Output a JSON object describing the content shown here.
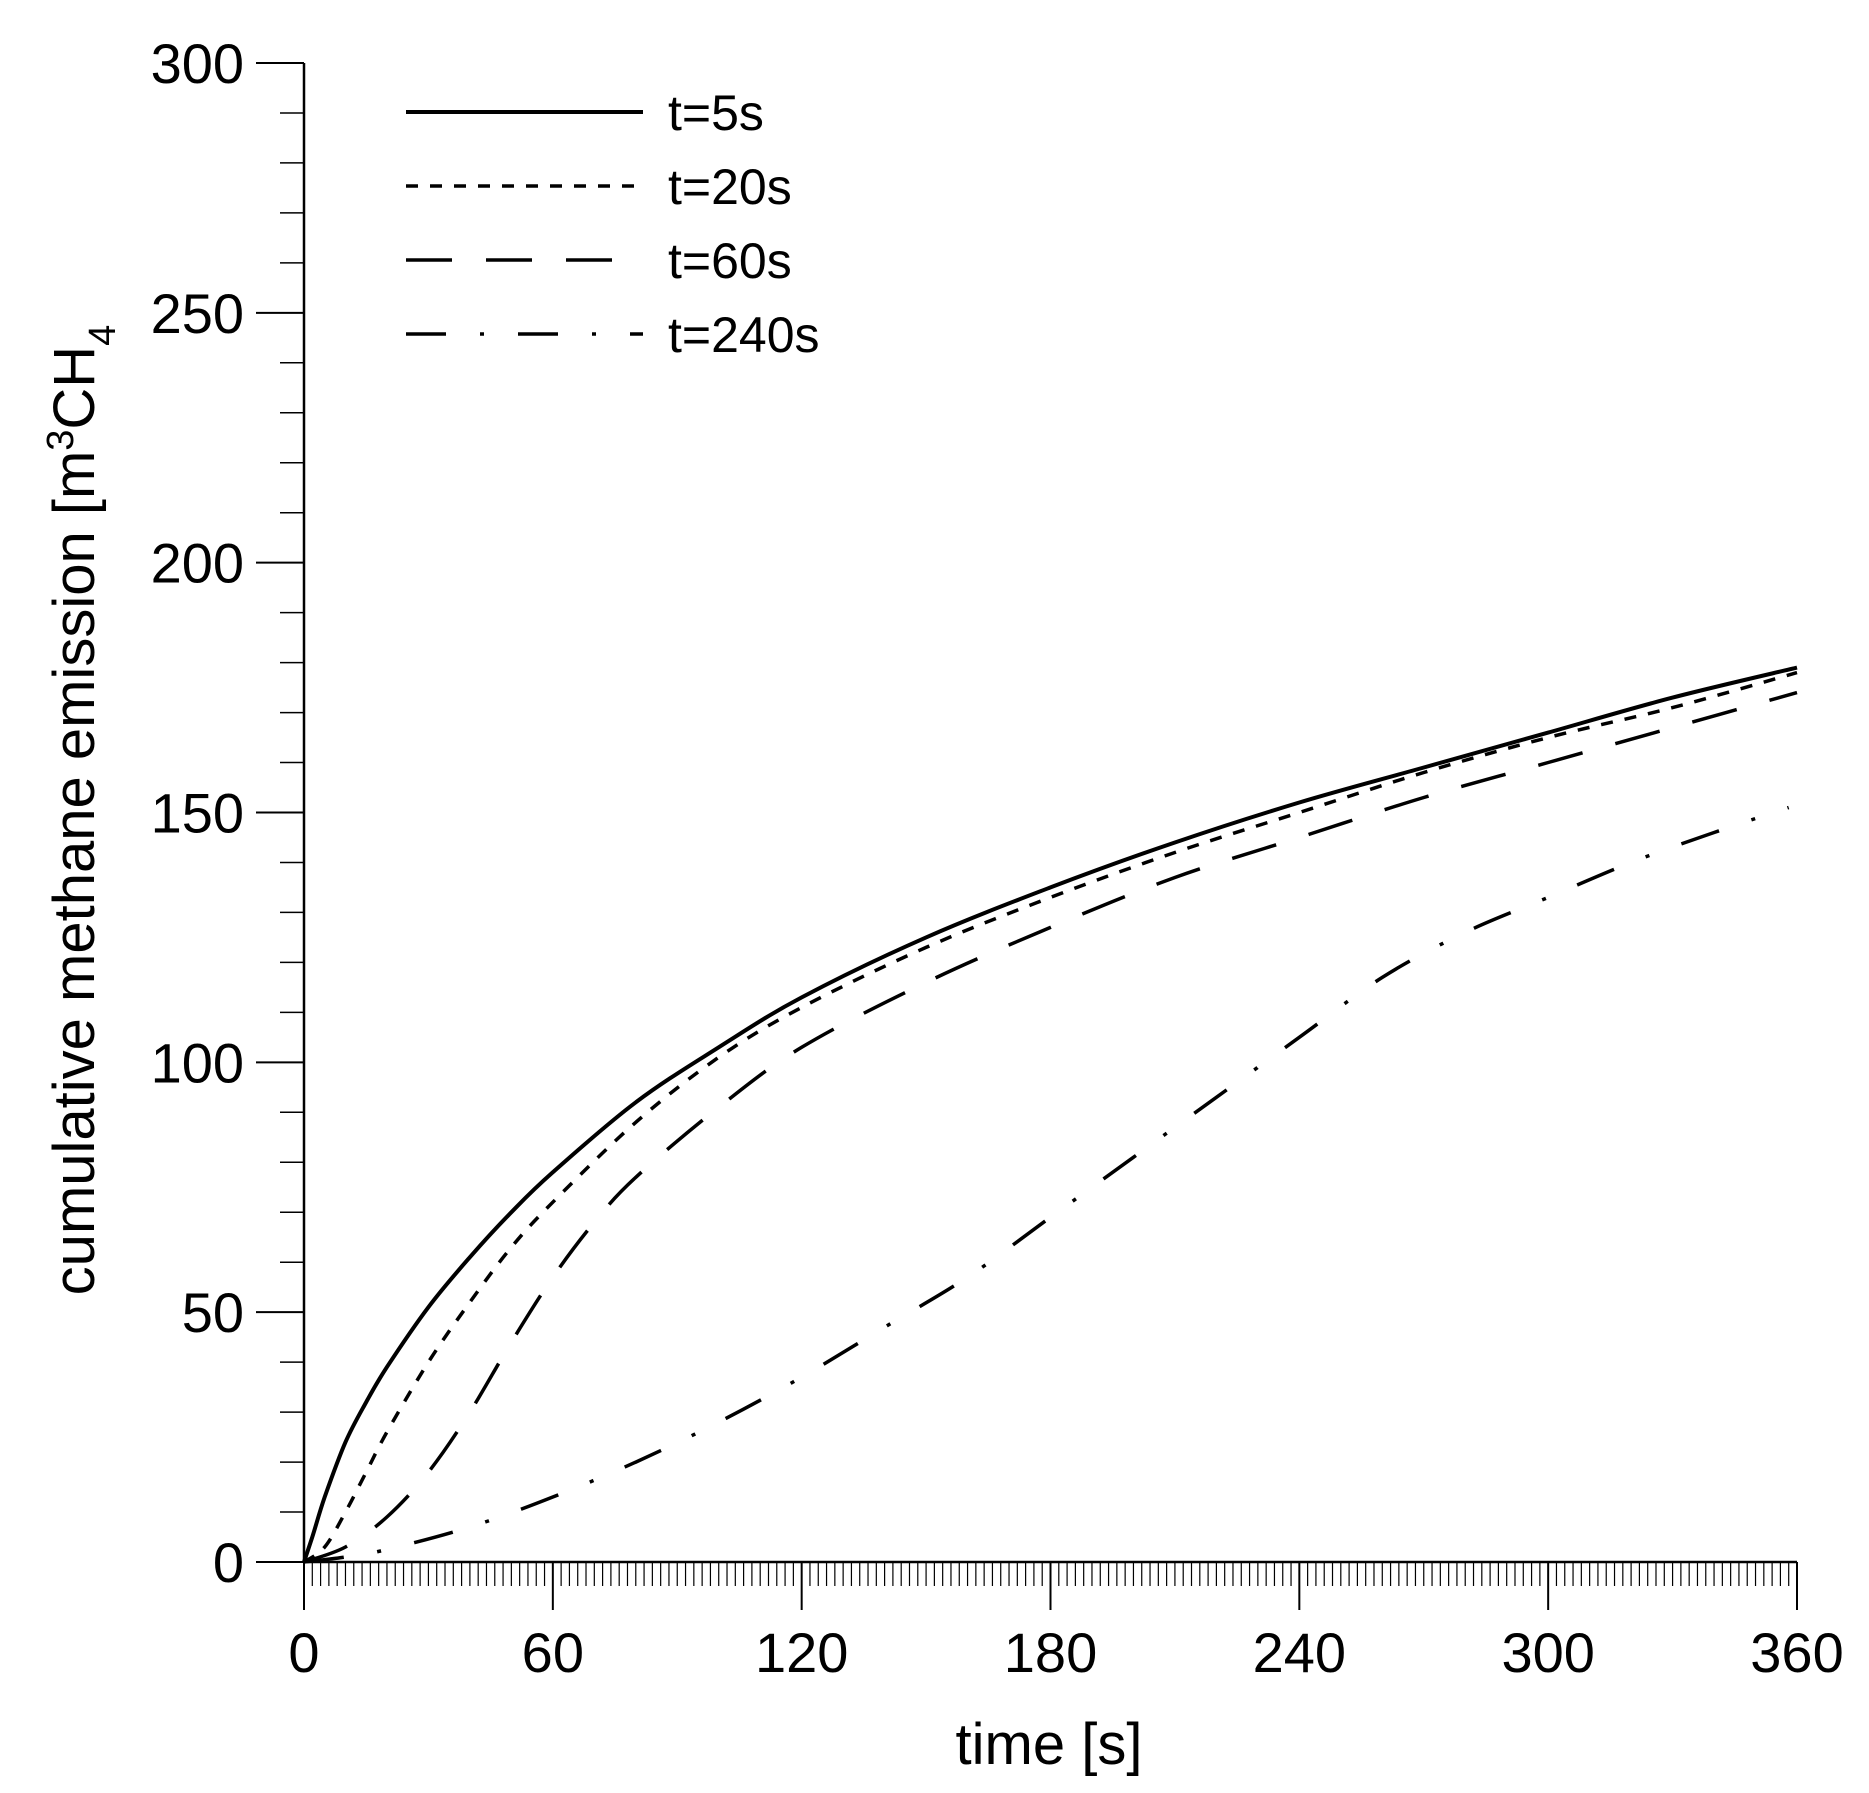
{
  "chart_data": {
    "type": "line",
    "xlabel": "time [s]",
    "ylabel_main": "cumulative methane emission [m",
    "ylabel_sup": "3",
    "ylabel_mid": "CH",
    "ylabel_sub": "4",
    "xlim": [
      0,
      360
    ],
    "ylim": [
      0,
      300
    ],
    "x_ticks": [
      0,
      60,
      120,
      180,
      240,
      300,
      360
    ],
    "x_tick_labels": [
      "0",
      "60",
      "120",
      "180",
      "240",
      "300",
      "360"
    ],
    "y_ticks": [
      0,
      50,
      100,
      150,
      200,
      250,
      300
    ],
    "y_tick_labels": [
      "0",
      "50",
      "100",
      "150",
      "200",
      "250",
      "300"
    ],
    "y_minor_step": 10,
    "x_minor_step": 2,
    "grid": false,
    "legend_position": "top-left",
    "series": [
      {
        "name": "t=5s",
        "line_style": "solid",
        "x": [
          0,
          2,
          5,
          10,
          15,
          20,
          30,
          40,
          50,
          60,
          80,
          100,
          120,
          150,
          180,
          210,
          240,
          270,
          300,
          330,
          360
        ],
        "y": [
          0,
          5,
          13,
          24,
          32,
          39,
          51,
          61,
          70,
          78,
          92,
          103,
          113,
          125,
          135,
          144,
          152,
          159,
          166,
          173,
          179
        ]
      },
      {
        "name": "t=20s",
        "line_style": "short-dash",
        "x": [
          0,
          5,
          10,
          15,
          20,
          30,
          40,
          50,
          60,
          80,
          100,
          120,
          150,
          180,
          210,
          240,
          270,
          300,
          330,
          360
        ],
        "y": [
          0,
          3,
          10,
          18,
          26,
          40,
          52,
          63,
          72,
          88,
          101,
          111,
          123,
          133,
          142,
          150,
          158,
          165,
          171,
          178
        ]
      },
      {
        "name": "t=60s",
        "line_style": "long-dash",
        "x": [
          0,
          10,
          20,
          30,
          40,
          50,
          60,
          70,
          80,
          100,
          120,
          150,
          180,
          210,
          240,
          270,
          300,
          330,
          360
        ],
        "y": [
          0,
          3,
          9,
          18,
          30,
          44,
          57,
          68,
          77,
          91,
          103,
          116,
          127,
          137,
          145,
          153,
          160,
          167,
          174
        ]
      },
      {
        "name": "t=240s",
        "line_style": "dash-dot",
        "x": [
          0,
          10,
          20,
          40,
          60,
          80,
          100,
          120,
          140,
          160,
          180,
          200,
          220,
          240,
          260,
          280,
          300,
          320,
          340,
          358
        ],
        "y": [
          0,
          1,
          2.5,
          7,
          13,
          20,
          28,
          37,
          47,
          57,
          69,
          81,
          93,
          105,
          117,
          126,
          133,
          140,
          146,
          151
        ]
      }
    ]
  }
}
